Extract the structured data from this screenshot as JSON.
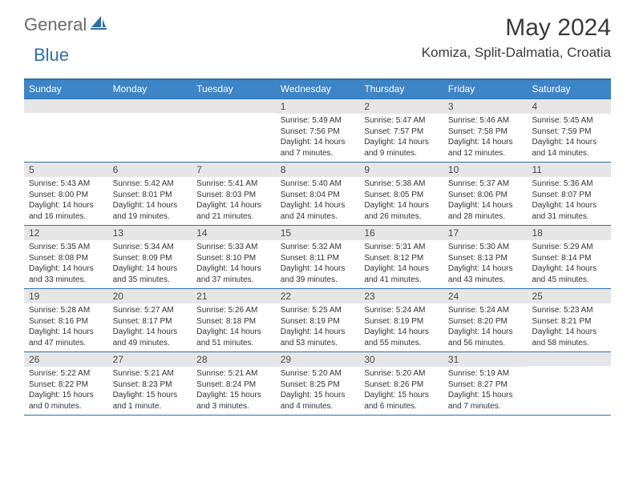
{
  "logo": {
    "word1": "General",
    "word2": "Blue"
  },
  "title": "May 2024",
  "subtitle": "Komiza, Split-Dalmatia, Croatia",
  "colors": {
    "accent": "#2f6fa8",
    "header_bg": "#3d85c6",
    "daynum_bg": "#e6e6e6",
    "text": "#333333",
    "title_text": "#3a3a3a",
    "logo_gray": "#6a6a6a"
  },
  "dow": [
    "Sunday",
    "Monday",
    "Tuesday",
    "Wednesday",
    "Thursday",
    "Friday",
    "Saturday"
  ],
  "weeks": [
    [
      {
        "n": "",
        "lines": []
      },
      {
        "n": "",
        "lines": []
      },
      {
        "n": "",
        "lines": []
      },
      {
        "n": "1",
        "lines": [
          "Sunrise: 5:49 AM",
          "Sunset: 7:56 PM",
          "Daylight: 14 hours",
          "and 7 minutes."
        ]
      },
      {
        "n": "2",
        "lines": [
          "Sunrise: 5:47 AM",
          "Sunset: 7:57 PM",
          "Daylight: 14 hours",
          "and 9 minutes."
        ]
      },
      {
        "n": "3",
        "lines": [
          "Sunrise: 5:46 AM",
          "Sunset: 7:58 PM",
          "Daylight: 14 hours",
          "and 12 minutes."
        ]
      },
      {
        "n": "4",
        "lines": [
          "Sunrise: 5:45 AM",
          "Sunset: 7:59 PM",
          "Daylight: 14 hours",
          "and 14 minutes."
        ]
      }
    ],
    [
      {
        "n": "5",
        "lines": [
          "Sunrise: 5:43 AM",
          "Sunset: 8:00 PM",
          "Daylight: 14 hours",
          "and 16 minutes."
        ]
      },
      {
        "n": "6",
        "lines": [
          "Sunrise: 5:42 AM",
          "Sunset: 8:01 PM",
          "Daylight: 14 hours",
          "and 19 minutes."
        ]
      },
      {
        "n": "7",
        "lines": [
          "Sunrise: 5:41 AM",
          "Sunset: 8:03 PM",
          "Daylight: 14 hours",
          "and 21 minutes."
        ]
      },
      {
        "n": "8",
        "lines": [
          "Sunrise: 5:40 AM",
          "Sunset: 8:04 PM",
          "Daylight: 14 hours",
          "and 24 minutes."
        ]
      },
      {
        "n": "9",
        "lines": [
          "Sunrise: 5:38 AM",
          "Sunset: 8:05 PM",
          "Daylight: 14 hours",
          "and 26 minutes."
        ]
      },
      {
        "n": "10",
        "lines": [
          "Sunrise: 5:37 AM",
          "Sunset: 8:06 PM",
          "Daylight: 14 hours",
          "and 28 minutes."
        ]
      },
      {
        "n": "11",
        "lines": [
          "Sunrise: 5:36 AM",
          "Sunset: 8:07 PM",
          "Daylight: 14 hours",
          "and 31 minutes."
        ]
      }
    ],
    [
      {
        "n": "12",
        "lines": [
          "Sunrise: 5:35 AM",
          "Sunset: 8:08 PM",
          "Daylight: 14 hours",
          "and 33 minutes."
        ]
      },
      {
        "n": "13",
        "lines": [
          "Sunrise: 5:34 AM",
          "Sunset: 8:09 PM",
          "Daylight: 14 hours",
          "and 35 minutes."
        ]
      },
      {
        "n": "14",
        "lines": [
          "Sunrise: 5:33 AM",
          "Sunset: 8:10 PM",
          "Daylight: 14 hours",
          "and 37 minutes."
        ]
      },
      {
        "n": "15",
        "lines": [
          "Sunrise: 5:32 AM",
          "Sunset: 8:11 PM",
          "Daylight: 14 hours",
          "and 39 minutes."
        ]
      },
      {
        "n": "16",
        "lines": [
          "Sunrise: 5:31 AM",
          "Sunset: 8:12 PM",
          "Daylight: 14 hours",
          "and 41 minutes."
        ]
      },
      {
        "n": "17",
        "lines": [
          "Sunrise: 5:30 AM",
          "Sunset: 8:13 PM",
          "Daylight: 14 hours",
          "and 43 minutes."
        ]
      },
      {
        "n": "18",
        "lines": [
          "Sunrise: 5:29 AM",
          "Sunset: 8:14 PM",
          "Daylight: 14 hours",
          "and 45 minutes."
        ]
      }
    ],
    [
      {
        "n": "19",
        "lines": [
          "Sunrise: 5:28 AM",
          "Sunset: 8:16 PM",
          "Daylight: 14 hours",
          "and 47 minutes."
        ]
      },
      {
        "n": "20",
        "lines": [
          "Sunrise: 5:27 AM",
          "Sunset: 8:17 PM",
          "Daylight: 14 hours",
          "and 49 minutes."
        ]
      },
      {
        "n": "21",
        "lines": [
          "Sunrise: 5:26 AM",
          "Sunset: 8:18 PM",
          "Daylight: 14 hours",
          "and 51 minutes."
        ]
      },
      {
        "n": "22",
        "lines": [
          "Sunrise: 5:25 AM",
          "Sunset: 8:19 PM",
          "Daylight: 14 hours",
          "and 53 minutes."
        ]
      },
      {
        "n": "23",
        "lines": [
          "Sunrise: 5:24 AM",
          "Sunset: 8:19 PM",
          "Daylight: 14 hours",
          "and 55 minutes."
        ]
      },
      {
        "n": "24",
        "lines": [
          "Sunrise: 5:24 AM",
          "Sunset: 8:20 PM",
          "Daylight: 14 hours",
          "and 56 minutes."
        ]
      },
      {
        "n": "25",
        "lines": [
          "Sunrise: 5:23 AM",
          "Sunset: 8:21 PM",
          "Daylight: 14 hours",
          "and 58 minutes."
        ]
      }
    ],
    [
      {
        "n": "26",
        "lines": [
          "Sunrise: 5:22 AM",
          "Sunset: 8:22 PM",
          "Daylight: 15 hours",
          "and 0 minutes."
        ]
      },
      {
        "n": "27",
        "lines": [
          "Sunrise: 5:21 AM",
          "Sunset: 8:23 PM",
          "Daylight: 15 hours",
          "and 1 minute."
        ]
      },
      {
        "n": "28",
        "lines": [
          "Sunrise: 5:21 AM",
          "Sunset: 8:24 PM",
          "Daylight: 15 hours",
          "and 3 minutes."
        ]
      },
      {
        "n": "29",
        "lines": [
          "Sunrise: 5:20 AM",
          "Sunset: 8:25 PM",
          "Daylight: 15 hours",
          "and 4 minutes."
        ]
      },
      {
        "n": "30",
        "lines": [
          "Sunrise: 5:20 AM",
          "Sunset: 8:26 PM",
          "Daylight: 15 hours",
          "and 6 minutes."
        ]
      },
      {
        "n": "31",
        "lines": [
          "Sunrise: 5:19 AM",
          "Sunset: 8:27 PM",
          "Daylight: 15 hours",
          "and 7 minutes."
        ]
      },
      {
        "n": "",
        "lines": []
      }
    ]
  ]
}
